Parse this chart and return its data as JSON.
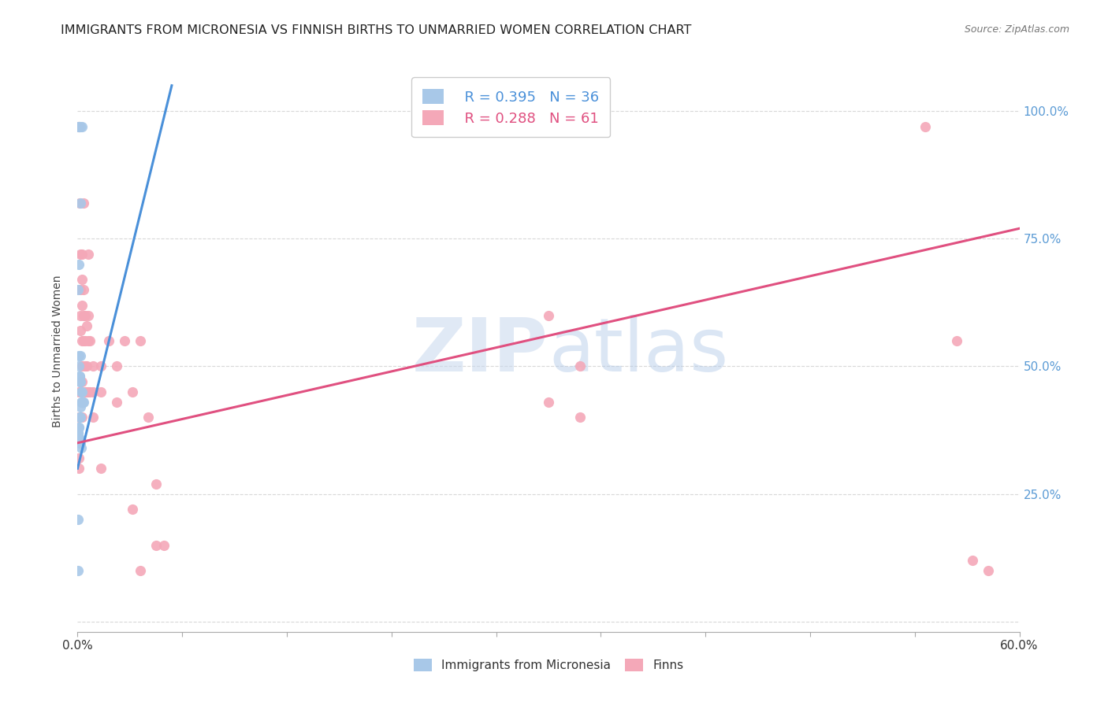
{
  "title": "IMMIGRANTS FROM MICRONESIA VS FINNISH BIRTHS TO UNMARRIED WOMEN CORRELATION CHART",
  "source": "Source: ZipAtlas.com",
  "ylabel": "Births to Unmarried Women",
  "legend_blue_r": "R = 0.395",
  "legend_blue_n": "N = 36",
  "legend_pink_r": "R = 0.288",
  "legend_pink_n": "N = 61",
  "blue_color": "#a8c8e8",
  "pink_color": "#f4a8b8",
  "trend_blue_color": "#4a90d9",
  "trend_pink_color": "#e05080",
  "right_axis_color": "#5b9bd5",
  "background_color": "#ffffff",
  "grid_color": "#d8d8d8",
  "watermark_color": "#d0e0f0",
  "blue_scatter_x": [
    0.001,
    0.002,
    0.0015,
    0.0008,
    0.003,
    0.002,
    0.001,
    0.0005,
    0.0008,
    0.001,
    0.0012,
    0.0015,
    0.002,
    0.0025,
    0.003,
    0.003,
    0.0035,
    0.0025,
    0.002,
    0.002,
    0.0015,
    0.001,
    0.0008,
    0.0005,
    0.0003,
    0.0007,
    0.001,
    0.0015,
    0.002,
    0.0025,
    0.0035,
    0.004,
    0.0005,
    0.0003,
    0.0012,
    0.0018
  ],
  "blue_scatter_y": [
    0.97,
    0.97,
    0.97,
    0.97,
    0.97,
    0.82,
    0.7,
    0.65,
    0.52,
    0.5,
    0.48,
    0.47,
    0.47,
    0.45,
    0.45,
    0.43,
    0.43,
    0.43,
    0.42,
    0.4,
    0.4,
    0.38,
    0.38,
    0.37,
    0.37,
    0.36,
    0.36,
    0.35,
    0.35,
    0.34,
    0.43,
    0.43,
    0.2,
    0.1,
    0.48,
    0.52
  ],
  "pink_scatter_x": [
    0.0003,
    0.001,
    0.001,
    0.001,
    0.001,
    0.0015,
    0.002,
    0.002,
    0.002,
    0.002,
    0.002,
    0.003,
    0.003,
    0.003,
    0.003,
    0.003,
    0.003,
    0.003,
    0.004,
    0.004,
    0.004,
    0.004,
    0.005,
    0.005,
    0.005,
    0.005,
    0.006,
    0.006,
    0.006,
    0.007,
    0.007,
    0.007,
    0.007,
    0.008,
    0.008,
    0.01,
    0.01,
    0.01,
    0.015,
    0.015,
    0.015,
    0.02,
    0.025,
    0.025,
    0.03,
    0.035,
    0.04,
    0.045,
    0.05,
    0.055,
    0.05,
    0.04,
    0.035,
    0.3,
    0.32,
    0.3,
    0.32,
    0.54,
    0.56,
    0.57,
    0.58
  ],
  "pink_scatter_y": [
    0.97,
    0.45,
    0.4,
    0.3,
    0.32,
    0.82,
    0.72,
    0.65,
    0.6,
    0.57,
    0.47,
    0.72,
    0.67,
    0.62,
    0.55,
    0.5,
    0.47,
    0.4,
    0.82,
    0.65,
    0.6,
    0.55,
    0.6,
    0.55,
    0.5,
    0.45,
    0.58,
    0.5,
    0.45,
    0.72,
    0.6,
    0.55,
    0.45,
    0.55,
    0.45,
    0.5,
    0.45,
    0.4,
    0.5,
    0.45,
    0.3,
    0.55,
    0.5,
    0.43,
    0.55,
    0.45,
    0.55,
    0.4,
    0.27,
    0.15,
    0.15,
    0.1,
    0.22,
    0.6,
    0.5,
    0.43,
    0.4,
    0.97,
    0.55,
    0.12,
    0.1
  ],
  "blue_trend_x0": 0.0,
  "blue_trend_y0": 0.3,
  "blue_trend_x1": 0.06,
  "blue_trend_y1": 1.05,
  "pink_trend_x0": 0.0,
  "pink_trend_y0": 0.35,
  "pink_trend_x1": 0.6,
  "pink_trend_y1": 0.77,
  "xlim_min": 0.0,
  "xlim_max": 0.6,
  "ylim_min": -0.02,
  "ylim_max": 1.08,
  "yticks": [
    0.0,
    0.25,
    0.5,
    0.75,
    1.0
  ],
  "ytick_labels_right": [
    "",
    "25.0%",
    "50.0%",
    "75.0%",
    "100.0%"
  ]
}
